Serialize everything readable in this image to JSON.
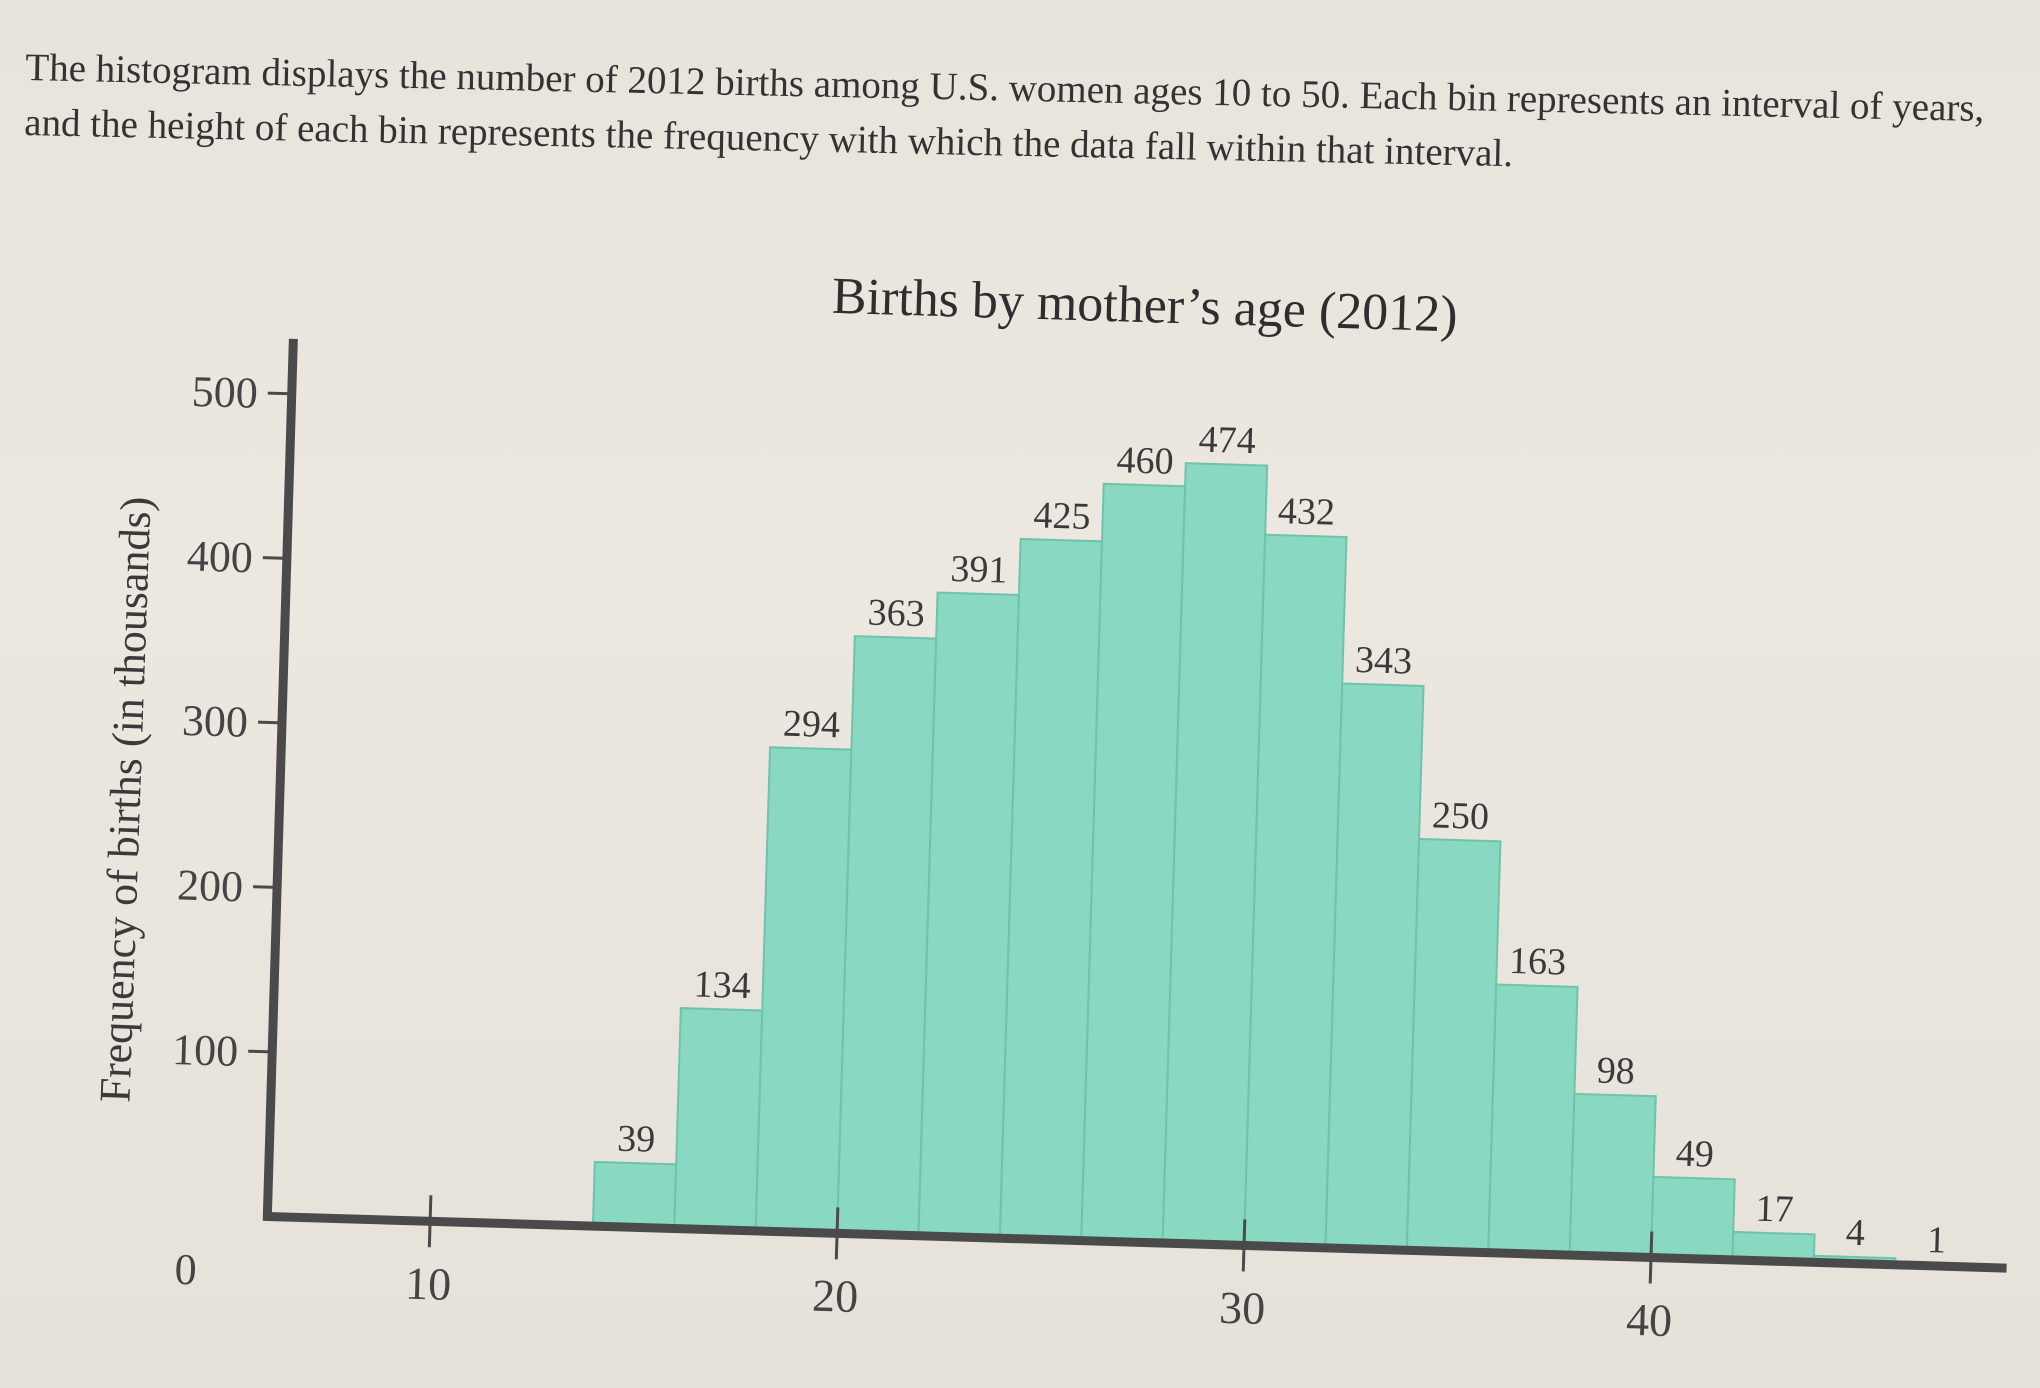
{
  "intro_text": "The histogram displays the number of 2012 births among U.S. women ages 10 to 50. Each bin represents an interval of years, and the height of each bin represents the frequency with which the data fall within that interval.",
  "chart_data": {
    "type": "bar",
    "title": "Births by mother’s age (2012)",
    "xlabel": "",
    "ylabel": "Frequency of births (in thousands)",
    "x_bin_starts": [
      14,
      16,
      18,
      20,
      22,
      24,
      26,
      28,
      30,
      32,
      34,
      36,
      38,
      40,
      42,
      44,
      46
    ],
    "values": [
      39,
      134,
      294,
      363,
      391,
      425,
      460,
      474,
      432,
      343,
      250,
      163,
      98,
      49,
      17,
      4,
      1
    ],
    "value_labels": [
      "39",
      "134",
      "294",
      "363",
      "391",
      "425",
      "460",
      "474",
      "432",
      "343",
      "250",
      "163",
      "98",
      "49",
      "17",
      "4",
      "1"
    ],
    "xlim": [
      6,
      48
    ],
    "ylim": [
      0,
      500
    ],
    "x_ticks": [
      10,
      20,
      30,
      40
    ],
    "x_tick_labels": [
      "10",
      "20",
      "30",
      "40"
    ],
    "y_ticks": [
      100,
      200,
      300,
      400,
      500
    ],
    "y_tick_labels": [
      "100",
      "200",
      "300",
      "400",
      "500"
    ],
    "y_zero_label": "0",
    "bar_color": "#88d8c2",
    "bar_edge_color": "#6fc2ab",
    "axis_color": "#4a4a4a",
    "grid": false
  }
}
